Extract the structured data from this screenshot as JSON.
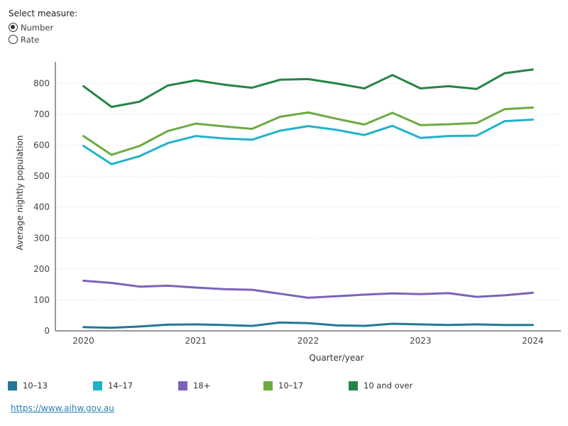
{
  "controls": {
    "title": "Select measure:",
    "options": [
      {
        "label": "Number",
        "selected": true
      },
      {
        "label": "Rate",
        "selected": false
      }
    ]
  },
  "source_url": "https://www.aihw.gov.au",
  "chart_data": {
    "type": "line",
    "xlabel": "Quarter/year",
    "ylabel": "Average nightly population",
    "ylim": [
      0,
      870
    ],
    "xlim": [
      2019.75,
      2024.25
    ],
    "yticks": [
      0,
      100,
      200,
      300,
      400,
      500,
      600,
      700,
      800
    ],
    "xticks": [
      2020,
      2021,
      2022,
      2023,
      2024
    ],
    "grid": true,
    "legend_position": "bottom",
    "x": [
      2020.0,
      2020.25,
      2020.5,
      2020.75,
      2021.0,
      2021.25,
      2021.5,
      2021.75,
      2022.0,
      2022.25,
      2022.5,
      2022.75,
      2023.0,
      2023.25,
      2023.5,
      2023.75,
      2024.0
    ],
    "series": [
      {
        "name": "10–13",
        "color": "#257896",
        "values": [
          12,
          10,
          14,
          20,
          21,
          19,
          16,
          27,
          25,
          18,
          16,
          23,
          21,
          19,
          21,
          19,
          19
        ]
      },
      {
        "name": "14–17",
        "color": "#1fb3c9",
        "values": [
          598,
          539,
          565,
          607,
          630,
          622,
          618,
          647,
          662,
          650,
          633,
          663,
          624,
          630,
          631,
          678,
          683
        ]
      },
      {
        "name": "18+",
        "color": "#7b64b7",
        "values": [
          162,
          155,
          143,
          146,
          140,
          135,
          133,
          120,
          107,
          112,
          117,
          121,
          119,
          122,
          110,
          115,
          123
        ]
      },
      {
        "name": "10–17",
        "color": "#6cab41",
        "values": [
          630,
          569,
          598,
          646,
          670,
          661,
          653,
          692,
          706,
          686,
          667,
          705,
          665,
          668,
          672,
          717,
          722
        ]
      },
      {
        "name": "10 and over",
        "color": "#258447",
        "values": [
          791,
          724,
          741,
          793,
          810,
          796,
          786,
          812,
          814,
          800,
          784,
          827,
          784,
          791,
          782,
          833,
          845
        ]
      }
    ]
  }
}
